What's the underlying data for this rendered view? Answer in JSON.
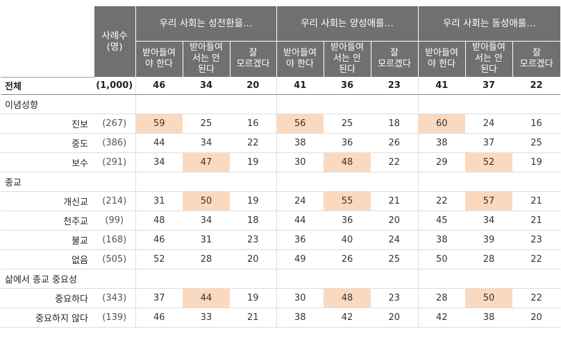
{
  "header": {
    "count_label": "사례수\n(명)",
    "groups": [
      "우리 사회는 성전환을…",
      "우리 사회는 양성애를…",
      "우리 사회는 동성애를…"
    ],
    "sub_columns": [
      "받아들여\n야 한다",
      "받아들여\n서는 안\n된다",
      "잘\n모르겠다"
    ]
  },
  "chart_data": {
    "type": "table",
    "columns": [
      "사례수 (명)",
      "성전환 받아들여야 한다",
      "성전환 받아들여서는 안 된다",
      "성전환 잘 모르겠다",
      "양성애 받아들여야 한다",
      "양성애 받아들여서는 안 된다",
      "양성애 잘 모르겠다",
      "동성애 받아들여야 한다",
      "동성애 받아들여서는 안 된다",
      "동성애 잘 모르겠다"
    ],
    "rows": [
      {
        "kind": "total",
        "label": "전체",
        "count": "(1,000)",
        "values": [
          46,
          34,
          20,
          41,
          36,
          23,
          41,
          37,
          22
        ],
        "highlight": []
      },
      {
        "kind": "category",
        "label": "이념성향"
      },
      {
        "kind": "row",
        "label": "진보",
        "count": "(267)",
        "values": [
          59,
          25,
          16,
          56,
          25,
          18,
          60,
          24,
          16
        ],
        "highlight": [
          0,
          3,
          6
        ]
      },
      {
        "kind": "row",
        "label": "중도",
        "count": "(386)",
        "values": [
          44,
          34,
          22,
          38,
          36,
          26,
          38,
          37,
          25
        ],
        "highlight": []
      },
      {
        "kind": "row",
        "label": "보수",
        "count": "(291)",
        "values": [
          34,
          47,
          19,
          30,
          48,
          22,
          29,
          52,
          19
        ],
        "highlight": [
          1,
          4,
          7
        ]
      },
      {
        "kind": "category",
        "label": "종교"
      },
      {
        "kind": "row",
        "label": "개신교",
        "count": "(214)",
        "values": [
          31,
          50,
          19,
          24,
          55,
          21,
          22,
          57,
          21
        ],
        "highlight": [
          1,
          4,
          7
        ]
      },
      {
        "kind": "row",
        "label": "천주교",
        "count": "(99)",
        "values": [
          48,
          34,
          18,
          44,
          36,
          20,
          45,
          34,
          21
        ],
        "highlight": []
      },
      {
        "kind": "row",
        "label": "불교",
        "count": "(168)",
        "values": [
          46,
          31,
          23,
          36,
          40,
          24,
          38,
          39,
          23
        ],
        "highlight": []
      },
      {
        "kind": "row",
        "label": "없음",
        "count": "(505)",
        "values": [
          52,
          28,
          20,
          49,
          26,
          25,
          50,
          28,
          22
        ],
        "highlight": []
      },
      {
        "kind": "category",
        "label": "삶에서 종교 중요성"
      },
      {
        "kind": "row",
        "label": "중요하다",
        "count": "(343)",
        "values": [
          37,
          44,
          19,
          30,
          48,
          23,
          28,
          50,
          22
        ],
        "highlight": [
          1,
          4,
          7
        ]
      },
      {
        "kind": "row",
        "label": "중요하지 않다",
        "count": "(139)",
        "values": [
          46,
          33,
          21,
          38,
          42,
          20,
          42,
          38,
          20
        ],
        "highlight": []
      }
    ]
  },
  "colors": {
    "header_bg": "#707070",
    "highlight": "#fbd9bf",
    "grid": "#dddddd"
  }
}
